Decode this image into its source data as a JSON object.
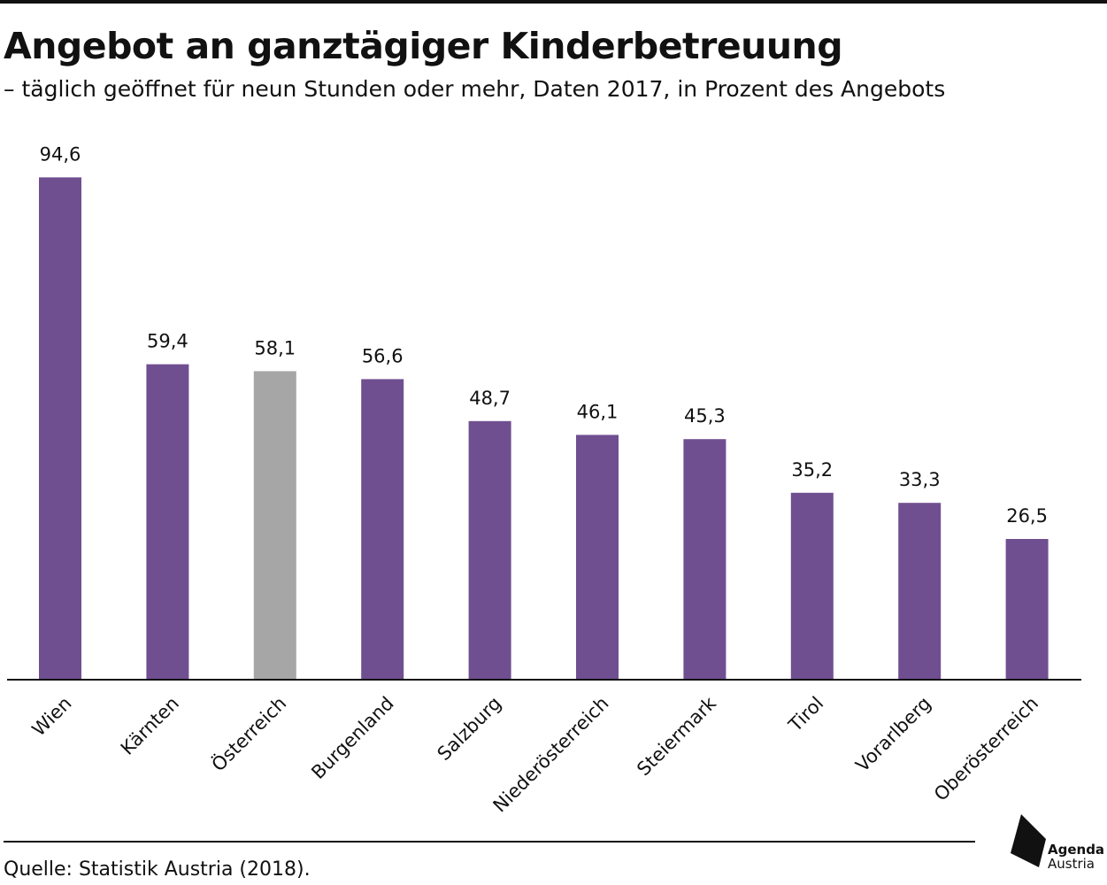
{
  "title": "Angebot an ganztägiger Kinderbetreuung",
  "subtitle": "– täglich geöffnet für neun Stunden oder mehr, Daten 2017, in Prozent des Angebots",
  "source": "Quelle: Statistik Austria (2018).",
  "logo": {
    "line1": "Agenda",
    "line2": "Austria"
  },
  "colors": {
    "bar": "#704F91",
    "highlight": "#A6A6A6",
    "text": "#111111",
    "axis": "#111111"
  },
  "chart_data": {
    "type": "bar",
    "categories": [
      "Wien",
      "Kärnten",
      "Österreich",
      "Burgenland",
      "Salzburg",
      "Niederösterreich",
      "Steiermark",
      "Tirol",
      "Vorarlberg",
      "Oberösterreich"
    ],
    "values": [
      94.6,
      59.4,
      58.1,
      56.6,
      48.7,
      46.1,
      45.3,
      35.2,
      33.3,
      26.5
    ],
    "value_labels": [
      "94,6",
      "59,4",
      "58,1",
      "56,6",
      "48,7",
      "46,1",
      "45,3",
      "35,2",
      "33,3",
      "26,5"
    ],
    "highlight_category": "Österreich",
    "ylim": [
      0,
      100
    ],
    "xlabel": "",
    "ylabel": "",
    "grid": false,
    "legend": false
  }
}
